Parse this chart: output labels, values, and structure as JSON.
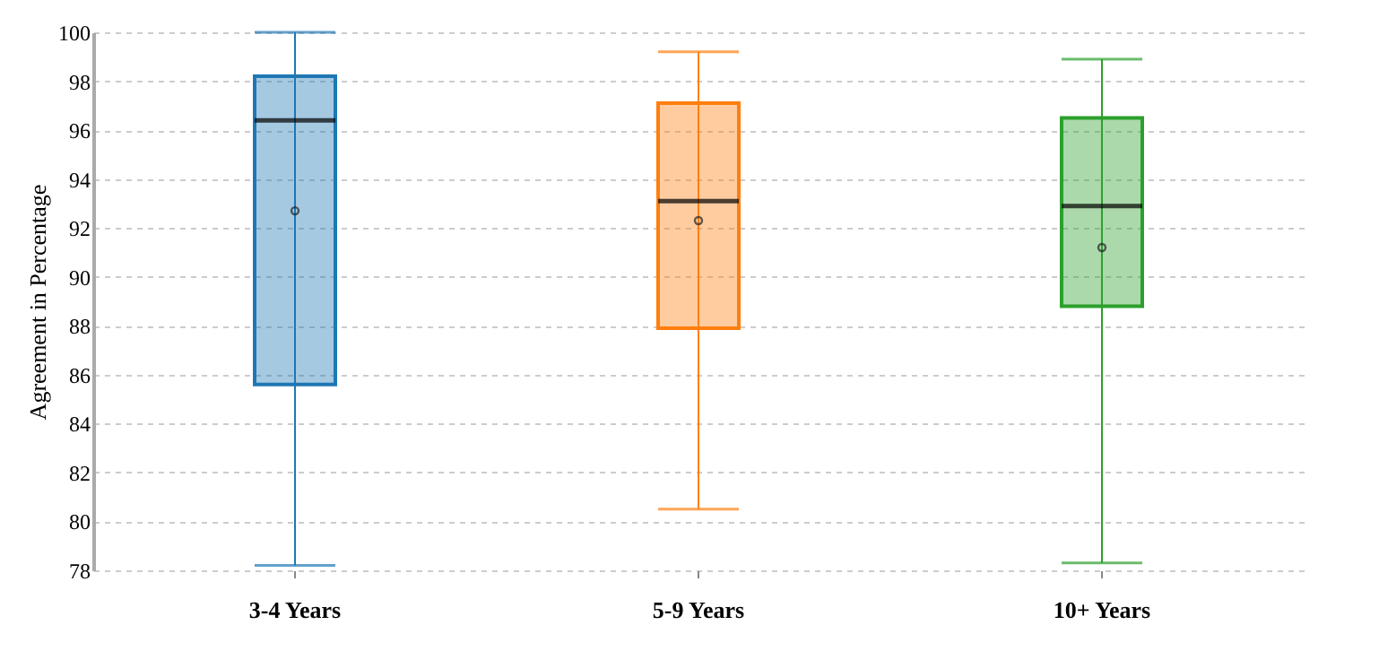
{
  "chart_data": {
    "type": "box",
    "ylabel": "Agreement in Percentage",
    "categories": [
      "3-4 Years",
      "5-9 Years",
      "10+ Years"
    ],
    "colors": [
      "#1f77b4",
      "#ff7f0e",
      "#2ca02c"
    ],
    "boxes": [
      {
        "low": 78.2,
        "q1": 85.6,
        "median": 96.4,
        "q3": 98.2,
        "high": 100,
        "mean": 92.7
      },
      {
        "low": 80.5,
        "q1": 87.9,
        "median": 93.1,
        "q3": 97.1,
        "high": 99.2,
        "mean": 92.3
      },
      {
        "low": 78.3,
        "q1": 88.8,
        "median": 92.9,
        "q3": 96.5,
        "high": 98.9,
        "mean": 91.2
      }
    ],
    "ylim": [
      78,
      100
    ],
    "yticks": [
      78,
      80,
      82,
      84,
      86,
      88,
      90,
      92,
      94,
      96,
      98,
      100
    ],
    "grid": "y"
  }
}
